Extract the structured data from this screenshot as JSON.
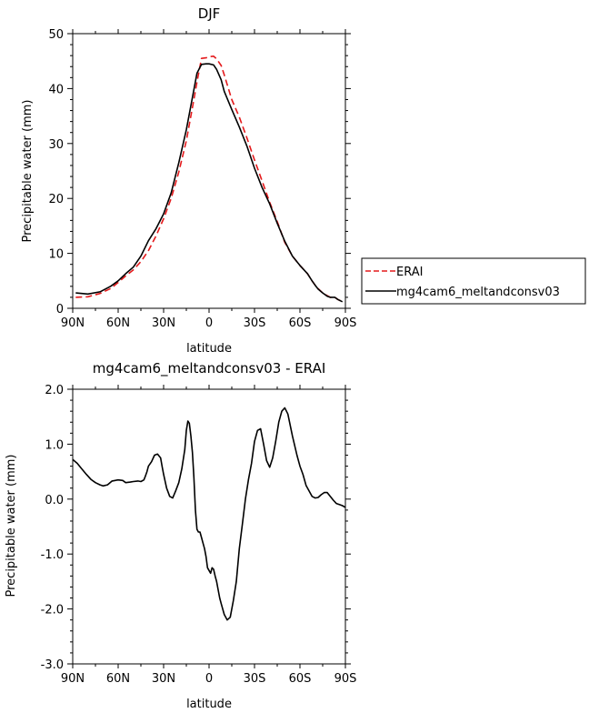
{
  "chart_data": [
    {
      "type": "line",
      "title": "DJF",
      "xlabel": "latitude",
      "ylabel": "Precipitable water (mm)",
      "xlim": [
        90,
        -90
      ],
      "ylim": [
        0,
        50
      ],
      "xticks": [
        90,
        60,
        30,
        0,
        -30,
        -60,
        -90
      ],
      "xtick_labels": [
        "90N",
        "60N",
        "30N",
        "0",
        "30S",
        "60S",
        "90S"
      ],
      "yticks": [
        0,
        10,
        20,
        30,
        40,
        50
      ],
      "ytick_labels": [
        "0",
        "10",
        "20",
        "30",
        "40",
        "50"
      ],
      "legend": {
        "placement": "outside-right"
      },
      "series": [
        {
          "name": "ERAI",
          "color": "#e41a1c",
          "dash": "dashed",
          "x": [
            88,
            80,
            72,
            65,
            60,
            55,
            50,
            45,
            40,
            35,
            30,
            25,
            20,
            15,
            10,
            8,
            5,
            2,
            0,
            -3,
            -5,
            -8,
            -10,
            -15,
            -20,
            -25,
            -30,
            -35,
            -40,
            -45,
            -50,
            -55,
            -60,
            -65,
            -68,
            -70,
            -72,
            -75,
            -78,
            -80,
            -83,
            -85,
            -88
          ],
          "y": [
            2.0,
            2.1,
            2.7,
            3.6,
            4.7,
            5.9,
            7.0,
            8.5,
            10.5,
            13.2,
            16.3,
            20.0,
            24.8,
            30.5,
            38.0,
            41.2,
            45.5,
            45.6,
            45.8,
            45.9,
            45.4,
            44.2,
            42.5,
            38.0,
            34.8,
            31.0,
            27.0,
            23.2,
            19.3,
            15.8,
            12.0,
            9.5,
            7.8,
            6.3,
            5.0,
            4.2,
            3.6,
            2.8,
            2.3,
            2.0,
            2.0,
            1.6,
            1.2
          ]
        },
        {
          "name": "mg4cam6_meltandconsv03",
          "color": "#000000",
          "dash": "solid",
          "x": [
            88,
            80,
            72,
            65,
            60,
            55,
            50,
            45,
            40,
            35,
            30,
            25,
            20,
            15,
            10,
            8,
            5,
            2,
            0,
            -3,
            -5,
            -8,
            -10,
            -15,
            -20,
            -25,
            -30,
            -35,
            -40,
            -45,
            -50,
            -55,
            -60,
            -65,
            -68,
            -70,
            -72,
            -75,
            -78,
            -80,
            -83,
            -85,
            -88
          ],
          "y": [
            2.8,
            2.6,
            3.0,
            4.0,
            5.0,
            6.3,
            7.5,
            9.5,
            12.3,
            14.5,
            17.2,
            21.0,
            26.5,
            32.5,
            39.8,
            42.8,
            44.4,
            44.5,
            44.5,
            44.3,
            43.5,
            41.6,
            39.5,
            36.2,
            33.0,
            29.5,
            25.5,
            22.0,
            19.0,
            15.5,
            12.2,
            9.5,
            7.8,
            6.3,
            5.0,
            4.2,
            3.5,
            2.8,
            2.2,
            2.0,
            2.0,
            1.6,
            1.2
          ]
        }
      ]
    },
    {
      "type": "line",
      "title": "mg4cam6_meltandconsv03 - ERAI",
      "xlabel": "latitude",
      "ylabel": "Precipitable water (mm)",
      "xlim": [
        90,
        -90
      ],
      "ylim": [
        -3.0,
        2.0
      ],
      "xticks": [
        90,
        60,
        30,
        0,
        -30,
        -60,
        -90
      ],
      "xtick_labels": [
        "90N",
        "60N",
        "30N",
        "0",
        "30S",
        "60S",
        "90S"
      ],
      "yticks": [
        -3.0,
        -2.0,
        -1.0,
        0.0,
        1.0,
        2.0
      ],
      "ytick_labels": [
        "-3.0",
        "-2.0",
        "-1.0",
        "0.0",
        "1.0",
        "2.0"
      ],
      "series": [
        {
          "color": "#000000",
          "dash": "solid",
          "x": [
            90,
            87,
            84,
            81,
            78,
            75,
            72,
            70,
            67,
            64,
            62,
            60,
            57,
            55,
            52,
            50,
            47,
            45,
            43,
            42,
            41,
            40,
            38,
            36,
            34,
            32,
            31,
            30,
            28,
            26,
            24,
            22,
            20,
            18,
            16,
            15,
            14,
            13,
            12,
            11,
            10,
            9,
            8,
            7,
            6,
            5,
            4,
            3,
            2,
            1,
            0,
            -1,
            -2,
            -3,
            -4,
            -5,
            -6,
            -7,
            -8,
            -10,
            -12,
            -14,
            -16,
            -18,
            -20,
            -22,
            -24,
            -26,
            -28,
            -30,
            -32,
            -34,
            -36,
            -38,
            -40,
            -42,
            -44,
            -46,
            -48,
            -50,
            -52,
            -55,
            -58,
            -60,
            -62,
            -64,
            -66,
            -68,
            -70,
            -72,
            -74,
            -76,
            -78,
            -80,
            -82,
            -84,
            -86,
            -88,
            -90
          ],
          "y": [
            0.72,
            0.65,
            0.55,
            0.45,
            0.36,
            0.3,
            0.26,
            0.24,
            0.26,
            0.33,
            0.34,
            0.35,
            0.34,
            0.3,
            0.31,
            0.32,
            0.33,
            0.32,
            0.35,
            0.42,
            0.5,
            0.6,
            0.68,
            0.8,
            0.82,
            0.75,
            0.6,
            0.45,
            0.2,
            0.05,
            0.02,
            0.15,
            0.3,
            0.55,
            0.9,
            1.25,
            1.42,
            1.38,
            1.15,
            0.85,
            0.4,
            -0.2,
            -0.55,
            -0.6,
            -0.6,
            -0.7,
            -0.8,
            -0.9,
            -1.05,
            -1.25,
            -1.3,
            -1.35,
            -1.25,
            -1.28,
            -1.4,
            -1.5,
            -1.65,
            -1.8,
            -1.9,
            -2.1,
            -2.2,
            -2.15,
            -1.85,
            -1.5,
            -0.9,
            -0.45,
            0.0,
            0.35,
            0.65,
            1.05,
            1.25,
            1.28,
            1.0,
            0.7,
            0.58,
            0.75,
            1.05,
            1.4,
            1.6,
            1.66,
            1.55,
            1.15,
            0.8,
            0.6,
            0.45,
            0.25,
            0.15,
            0.05,
            0.02,
            0.03,
            0.08,
            0.12,
            0.12,
            0.05,
            -0.02,
            -0.08,
            -0.1,
            -0.12,
            -0.15
          ]
        }
      ]
    }
  ],
  "legend_entries": [
    {
      "label": "ERAI",
      "color": "#e41a1c",
      "dash": "dashed"
    },
    {
      "label": "mg4cam6_meltandconsv03",
      "color": "#000000",
      "dash": "solid"
    }
  ]
}
